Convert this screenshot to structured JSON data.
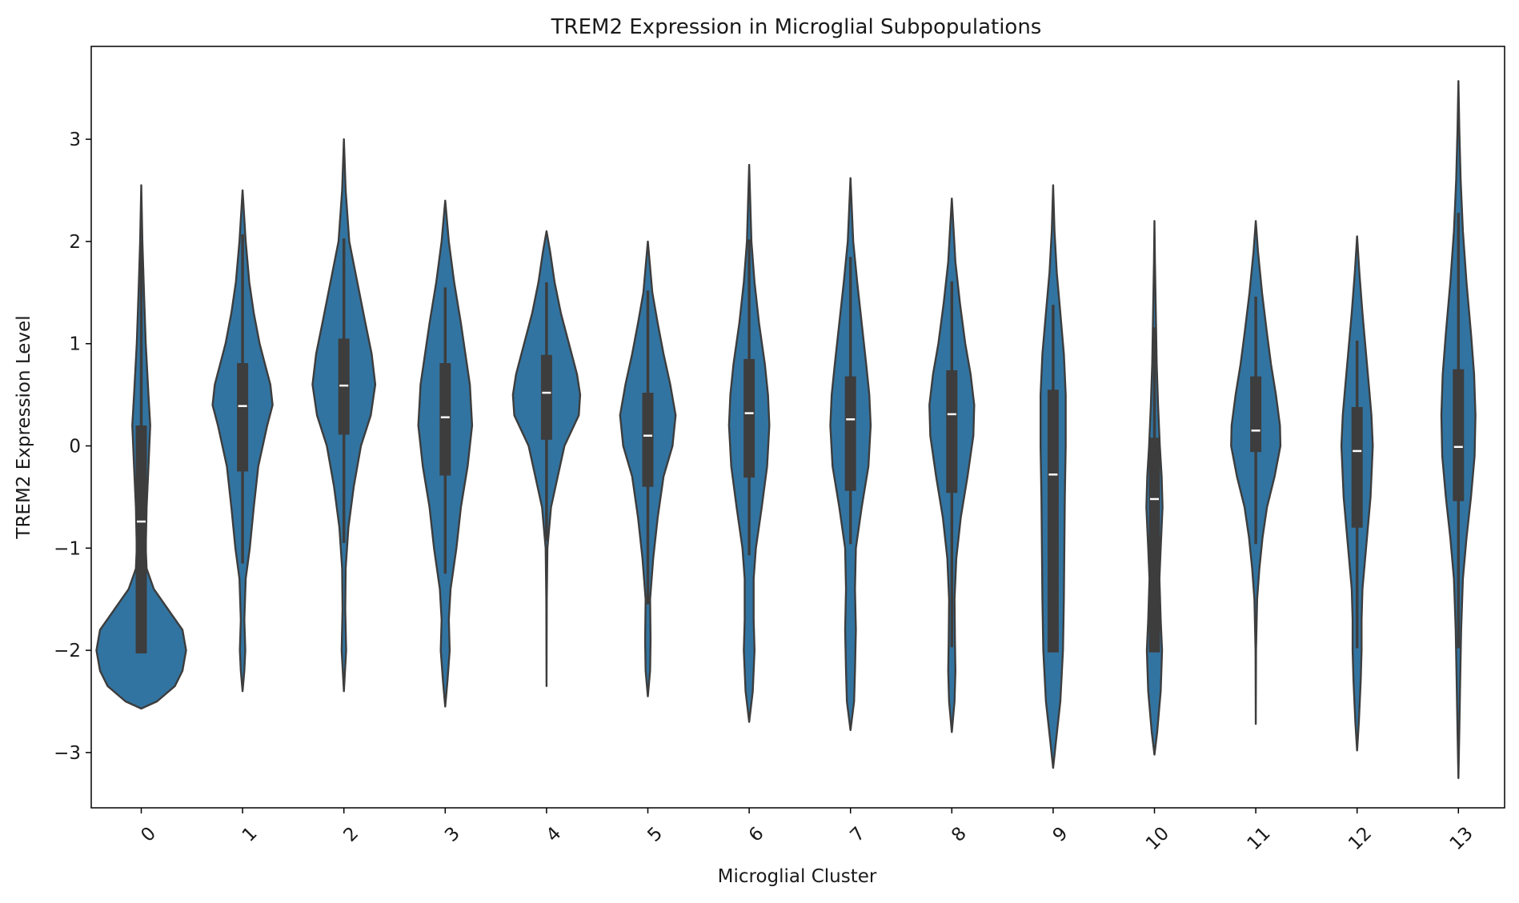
{
  "chart_data": {
    "type": "violin",
    "title": "TREM2 Expression in Microglial Subpopulations",
    "xlabel": "Microglial Cluster",
    "ylabel": "TREM2 Expression Level",
    "categories": [
      "0",
      "1",
      "2",
      "3",
      "4",
      "5",
      "6",
      "7",
      "8",
      "9",
      "10",
      "11",
      "12",
      "13"
    ],
    "ylim": [
      -3.6,
      3.9
    ],
    "yticks": [
      -3,
      -2,
      -1,
      0,
      1,
      2,
      3
    ],
    "ytick_labels": [
      "−3",
      "−2",
      "−1",
      "0",
      "1",
      "2",
      "3"
    ],
    "xtick_rotation": 45,
    "grid": false,
    "colors": {
      "violin": "#3274a1",
      "outline": "#3d3d3d",
      "median": "#ffffff"
    },
    "stats": [
      {
        "cluster": "0",
        "min": -2.03,
        "q1": -2.03,
        "median": -0.74,
        "q3": 0.2,
        "max": 2.0
      },
      {
        "cluster": "1",
        "min": -1.15,
        "q1": -0.25,
        "median": 0.39,
        "q3": 0.81,
        "max": 2.07
      },
      {
        "cluster": "2",
        "min": -0.95,
        "q1": 0.11,
        "median": 0.59,
        "q3": 1.05,
        "max": 2.03
      },
      {
        "cluster": "3",
        "min": -1.25,
        "q1": -0.29,
        "median": 0.28,
        "q3": 0.81,
        "max": 1.55
      },
      {
        "cluster": "4",
        "min": -0.93,
        "q1": 0.06,
        "median": 0.52,
        "q3": 0.89,
        "max": 1.6
      },
      {
        "cluster": "5",
        "min": -1.55,
        "q1": -0.4,
        "median": 0.1,
        "q3": 0.52,
        "max": 1.52
      },
      {
        "cluster": "6",
        "min": -1.07,
        "q1": -0.31,
        "median": 0.32,
        "q3": 0.85,
        "max": 2.02
      },
      {
        "cluster": "7",
        "min": -0.96,
        "q1": -0.44,
        "median": 0.26,
        "q3": 0.68,
        "max": 1.85
      },
      {
        "cluster": "8",
        "min": -1.97,
        "q1": -0.46,
        "median": 0.31,
        "q3": 0.74,
        "max": 1.61
      },
      {
        "cluster": "9",
        "min": -2.02,
        "q1": -2.02,
        "median": -0.28,
        "q3": 0.55,
        "max": 1.38
      },
      {
        "cluster": "10",
        "min": -2.02,
        "q1": -2.02,
        "median": -0.52,
        "q3": 0.08,
        "max": 1.16
      },
      {
        "cluster": "11",
        "min": -0.96,
        "q1": -0.06,
        "median": 0.15,
        "q3": 0.68,
        "max": 1.46
      },
      {
        "cluster": "12",
        "min": -1.98,
        "q1": -0.8,
        "median": -0.05,
        "q3": 0.38,
        "max": 1.03
      },
      {
        "cluster": "13",
        "min": -1.98,
        "q1": -0.54,
        "median": -0.01,
        "q3": 0.75,
        "max": 2.28
      }
    ],
    "density": [
      {
        "cluster": "0",
        "bottom": -2.57,
        "top": 2.55,
        "profile": [
          [
            -2.57,
            0
          ],
          [
            -2.5,
            0.35
          ],
          [
            -2.35,
            0.75
          ],
          [
            -2.2,
            0.92
          ],
          [
            -2.0,
            1.0
          ],
          [
            -1.8,
            0.92
          ],
          [
            -1.6,
            0.6
          ],
          [
            -1.4,
            0.28
          ],
          [
            -1.2,
            0.12
          ],
          [
            -1.0,
            0.1
          ],
          [
            -0.6,
            0.12
          ],
          [
            -0.2,
            0.16
          ],
          [
            0.2,
            0.2
          ],
          [
            0.5,
            0.16
          ],
          [
            1.0,
            0.1
          ],
          [
            1.5,
            0.06
          ],
          [
            2.0,
            0.025
          ],
          [
            2.55,
            0
          ]
        ]
      },
      {
        "cluster": "1",
        "bottom": -2.4,
        "top": 2.5,
        "profile": [
          [
            -2.4,
            0
          ],
          [
            -2.2,
            0.04
          ],
          [
            -2.0,
            0.06
          ],
          [
            -1.7,
            0.04
          ],
          [
            -1.3,
            0.07
          ],
          [
            -1.0,
            0.16
          ],
          [
            -0.6,
            0.25
          ],
          [
            -0.2,
            0.35
          ],
          [
            0.2,
            0.55
          ],
          [
            0.4,
            0.67
          ],
          [
            0.6,
            0.62
          ],
          [
            0.8,
            0.5
          ],
          [
            1.0,
            0.38
          ],
          [
            1.3,
            0.25
          ],
          [
            1.6,
            0.15
          ],
          [
            2.0,
            0.07
          ],
          [
            2.5,
            0
          ]
        ]
      },
      {
        "cluster": "2",
        "bottom": -2.4,
        "top": 3.0,
        "profile": [
          [
            -2.4,
            0
          ],
          [
            -2.0,
            0.05
          ],
          [
            -1.6,
            0.03
          ],
          [
            -1.2,
            0.04
          ],
          [
            -0.8,
            0.1
          ],
          [
            -0.4,
            0.22
          ],
          [
            0.0,
            0.38
          ],
          [
            0.3,
            0.6
          ],
          [
            0.6,
            0.7
          ],
          [
            0.9,
            0.62
          ],
          [
            1.2,
            0.48
          ],
          [
            1.6,
            0.3
          ],
          [
            2.0,
            0.12
          ],
          [
            2.5,
            0.04
          ],
          [
            3.0,
            0
          ]
        ]
      },
      {
        "cluster": "3",
        "bottom": -2.55,
        "top": 2.4,
        "profile": [
          [
            -2.55,
            0
          ],
          [
            -2.3,
            0.05
          ],
          [
            -2.0,
            0.1
          ],
          [
            -1.7,
            0.08
          ],
          [
            -1.4,
            0.12
          ],
          [
            -1.0,
            0.25
          ],
          [
            -0.6,
            0.35
          ],
          [
            -0.2,
            0.5
          ],
          [
            0.2,
            0.6
          ],
          [
            0.6,
            0.55
          ],
          [
            0.9,
            0.45
          ],
          [
            1.2,
            0.35
          ],
          [
            1.6,
            0.2
          ],
          [
            2.0,
            0.08
          ],
          [
            2.4,
            0
          ]
        ]
      },
      {
        "cluster": "4",
        "bottom": -2.35,
        "top": 2.1,
        "profile": [
          [
            -2.35,
            0
          ],
          [
            -1.5,
            0.005
          ],
          [
            -1.0,
            0.02
          ],
          [
            -0.6,
            0.1
          ],
          [
            -0.3,
            0.25
          ],
          [
            0.0,
            0.4
          ],
          [
            0.3,
            0.72
          ],
          [
            0.5,
            0.75
          ],
          [
            0.7,
            0.68
          ],
          [
            1.0,
            0.5
          ],
          [
            1.3,
            0.32
          ],
          [
            1.6,
            0.18
          ],
          [
            1.9,
            0.08
          ],
          [
            2.1,
            0
          ]
        ]
      },
      {
        "cluster": "5",
        "bottom": -2.45,
        "top": 2.0,
        "profile": [
          [
            -2.45,
            0
          ],
          [
            -2.2,
            0.05
          ],
          [
            -1.9,
            0.06
          ],
          [
            -1.5,
            0.05
          ],
          [
            -1.1,
            0.12
          ],
          [
            -0.7,
            0.22
          ],
          [
            -0.3,
            0.35
          ],
          [
            0.0,
            0.55
          ],
          [
            0.3,
            0.62
          ],
          [
            0.6,
            0.5
          ],
          [
            0.9,
            0.35
          ],
          [
            1.2,
            0.22
          ],
          [
            1.5,
            0.1
          ],
          [
            2.0,
            0
          ]
        ]
      },
      {
        "cluster": "6",
        "bottom": -2.7,
        "top": 2.75,
        "profile": [
          [
            -2.7,
            0
          ],
          [
            -2.4,
            0.08
          ],
          [
            -2.0,
            0.12
          ],
          [
            -1.7,
            0.1
          ],
          [
            -1.3,
            0.1
          ],
          [
            -1.0,
            0.15
          ],
          [
            -0.6,
            0.28
          ],
          [
            -0.2,
            0.4
          ],
          [
            0.2,
            0.45
          ],
          [
            0.5,
            0.42
          ],
          [
            0.8,
            0.35
          ],
          [
            1.2,
            0.22
          ],
          [
            1.6,
            0.12
          ],
          [
            2.0,
            0.05
          ],
          [
            2.75,
            0
          ]
        ]
      },
      {
        "cluster": "7",
        "bottom": -2.78,
        "top": 2.62,
        "profile": [
          [
            -2.78,
            0
          ],
          [
            -2.5,
            0.08
          ],
          [
            -2.2,
            0.1
          ],
          [
            -1.8,
            0.12
          ],
          [
            -1.4,
            0.1
          ],
          [
            -1.0,
            0.12
          ],
          [
            -0.6,
            0.25
          ],
          [
            -0.2,
            0.4
          ],
          [
            0.2,
            0.45
          ],
          [
            0.5,
            0.42
          ],
          [
            0.8,
            0.35
          ],
          [
            1.2,
            0.25
          ],
          [
            1.6,
            0.15
          ],
          [
            2.0,
            0.06
          ],
          [
            2.62,
            0
          ]
        ]
      },
      {
        "cluster": "8",
        "bottom": -2.8,
        "top": 2.42,
        "profile": [
          [
            -2.8,
            0
          ],
          [
            -2.5,
            0.06
          ],
          [
            -2.2,
            0.08
          ],
          [
            -1.9,
            0.07
          ],
          [
            -1.5,
            0.06
          ],
          [
            -1.1,
            0.1
          ],
          [
            -0.7,
            0.2
          ],
          [
            -0.3,
            0.35
          ],
          [
            0.1,
            0.48
          ],
          [
            0.4,
            0.5
          ],
          [
            0.7,
            0.42
          ],
          [
            1.0,
            0.3
          ],
          [
            1.4,
            0.18
          ],
          [
            1.8,
            0.08
          ],
          [
            2.42,
            0
          ]
        ]
      },
      {
        "cluster": "9",
        "bottom": -3.15,
        "top": 2.55,
        "profile": [
          [
            -3.15,
            0
          ],
          [
            -2.9,
            0.06
          ],
          [
            -2.5,
            0.16
          ],
          [
            -2.0,
            0.22
          ],
          [
            -1.5,
            0.24
          ],
          [
            -1.0,
            0.25
          ],
          [
            -0.5,
            0.26
          ],
          [
            0.0,
            0.28
          ],
          [
            0.5,
            0.28
          ],
          [
            0.9,
            0.24
          ],
          [
            1.3,
            0.16
          ],
          [
            1.7,
            0.08
          ],
          [
            2.1,
            0.03
          ],
          [
            2.55,
            0
          ]
        ]
      },
      {
        "cluster": "10",
        "bottom": -3.02,
        "top": 2.2,
        "profile": [
          [
            -3.02,
            0
          ],
          [
            -2.8,
            0.06
          ],
          [
            -2.4,
            0.14
          ],
          [
            -2.0,
            0.17
          ],
          [
            -1.7,
            0.14
          ],
          [
            -1.3,
            0.11
          ],
          [
            -1.0,
            0.14
          ],
          [
            -0.6,
            0.18
          ],
          [
            -0.3,
            0.16
          ],
          [
            0.0,
            0.12
          ],
          [
            0.4,
            0.08
          ],
          [
            0.8,
            0.05
          ],
          [
            1.3,
            0.03
          ],
          [
            1.8,
            0.01
          ],
          [
            2.2,
            0
          ]
        ]
      },
      {
        "cluster": "11",
        "bottom": -2.72,
        "top": 2.2,
        "profile": [
          [
            -2.72,
            0
          ],
          [
            -2.0,
            0.005
          ],
          [
            -1.5,
            0.03
          ],
          [
            -1.2,
            0.08
          ],
          [
            -0.9,
            0.15
          ],
          [
            -0.6,
            0.25
          ],
          [
            -0.3,
            0.42
          ],
          [
            0.0,
            0.55
          ],
          [
            0.2,
            0.54
          ],
          [
            0.5,
            0.45
          ],
          [
            0.8,
            0.34
          ],
          [
            1.1,
            0.25
          ],
          [
            1.5,
            0.14
          ],
          [
            1.9,
            0.05
          ],
          [
            2.2,
            0
          ]
        ]
      },
      {
        "cluster": "12",
        "bottom": -2.98,
        "top": 2.05,
        "profile": [
          [
            -2.98,
            0
          ],
          [
            -2.7,
            0.04
          ],
          [
            -2.3,
            0.08
          ],
          [
            -2.0,
            0.1
          ],
          [
            -1.7,
            0.1
          ],
          [
            -1.4,
            0.12
          ],
          [
            -1.0,
            0.2
          ],
          [
            -0.5,
            0.3
          ],
          [
            0.0,
            0.35
          ],
          [
            0.3,
            0.32
          ],
          [
            0.6,
            0.26
          ],
          [
            0.9,
            0.2
          ],
          [
            1.3,
            0.12
          ],
          [
            1.7,
            0.05
          ],
          [
            2.05,
            0
          ]
        ]
      },
      {
        "cluster": "13",
        "bottom": -3.25,
        "top": 3.57,
        "profile": [
          [
            -3.25,
            0
          ],
          [
            -2.8,
            0.02
          ],
          [
            -2.3,
            0.04
          ],
          [
            -1.8,
            0.06
          ],
          [
            -1.3,
            0.1
          ],
          [
            -0.9,
            0.18
          ],
          [
            -0.5,
            0.28
          ],
          [
            -0.1,
            0.36
          ],
          [
            0.3,
            0.38
          ],
          [
            0.7,
            0.35
          ],
          [
            1.1,
            0.28
          ],
          [
            1.6,
            0.18
          ],
          [
            2.1,
            0.1
          ],
          [
            2.6,
            0.05
          ],
          [
            3.1,
            0.02
          ],
          [
            3.57,
            0
          ]
        ]
      }
    ]
  }
}
